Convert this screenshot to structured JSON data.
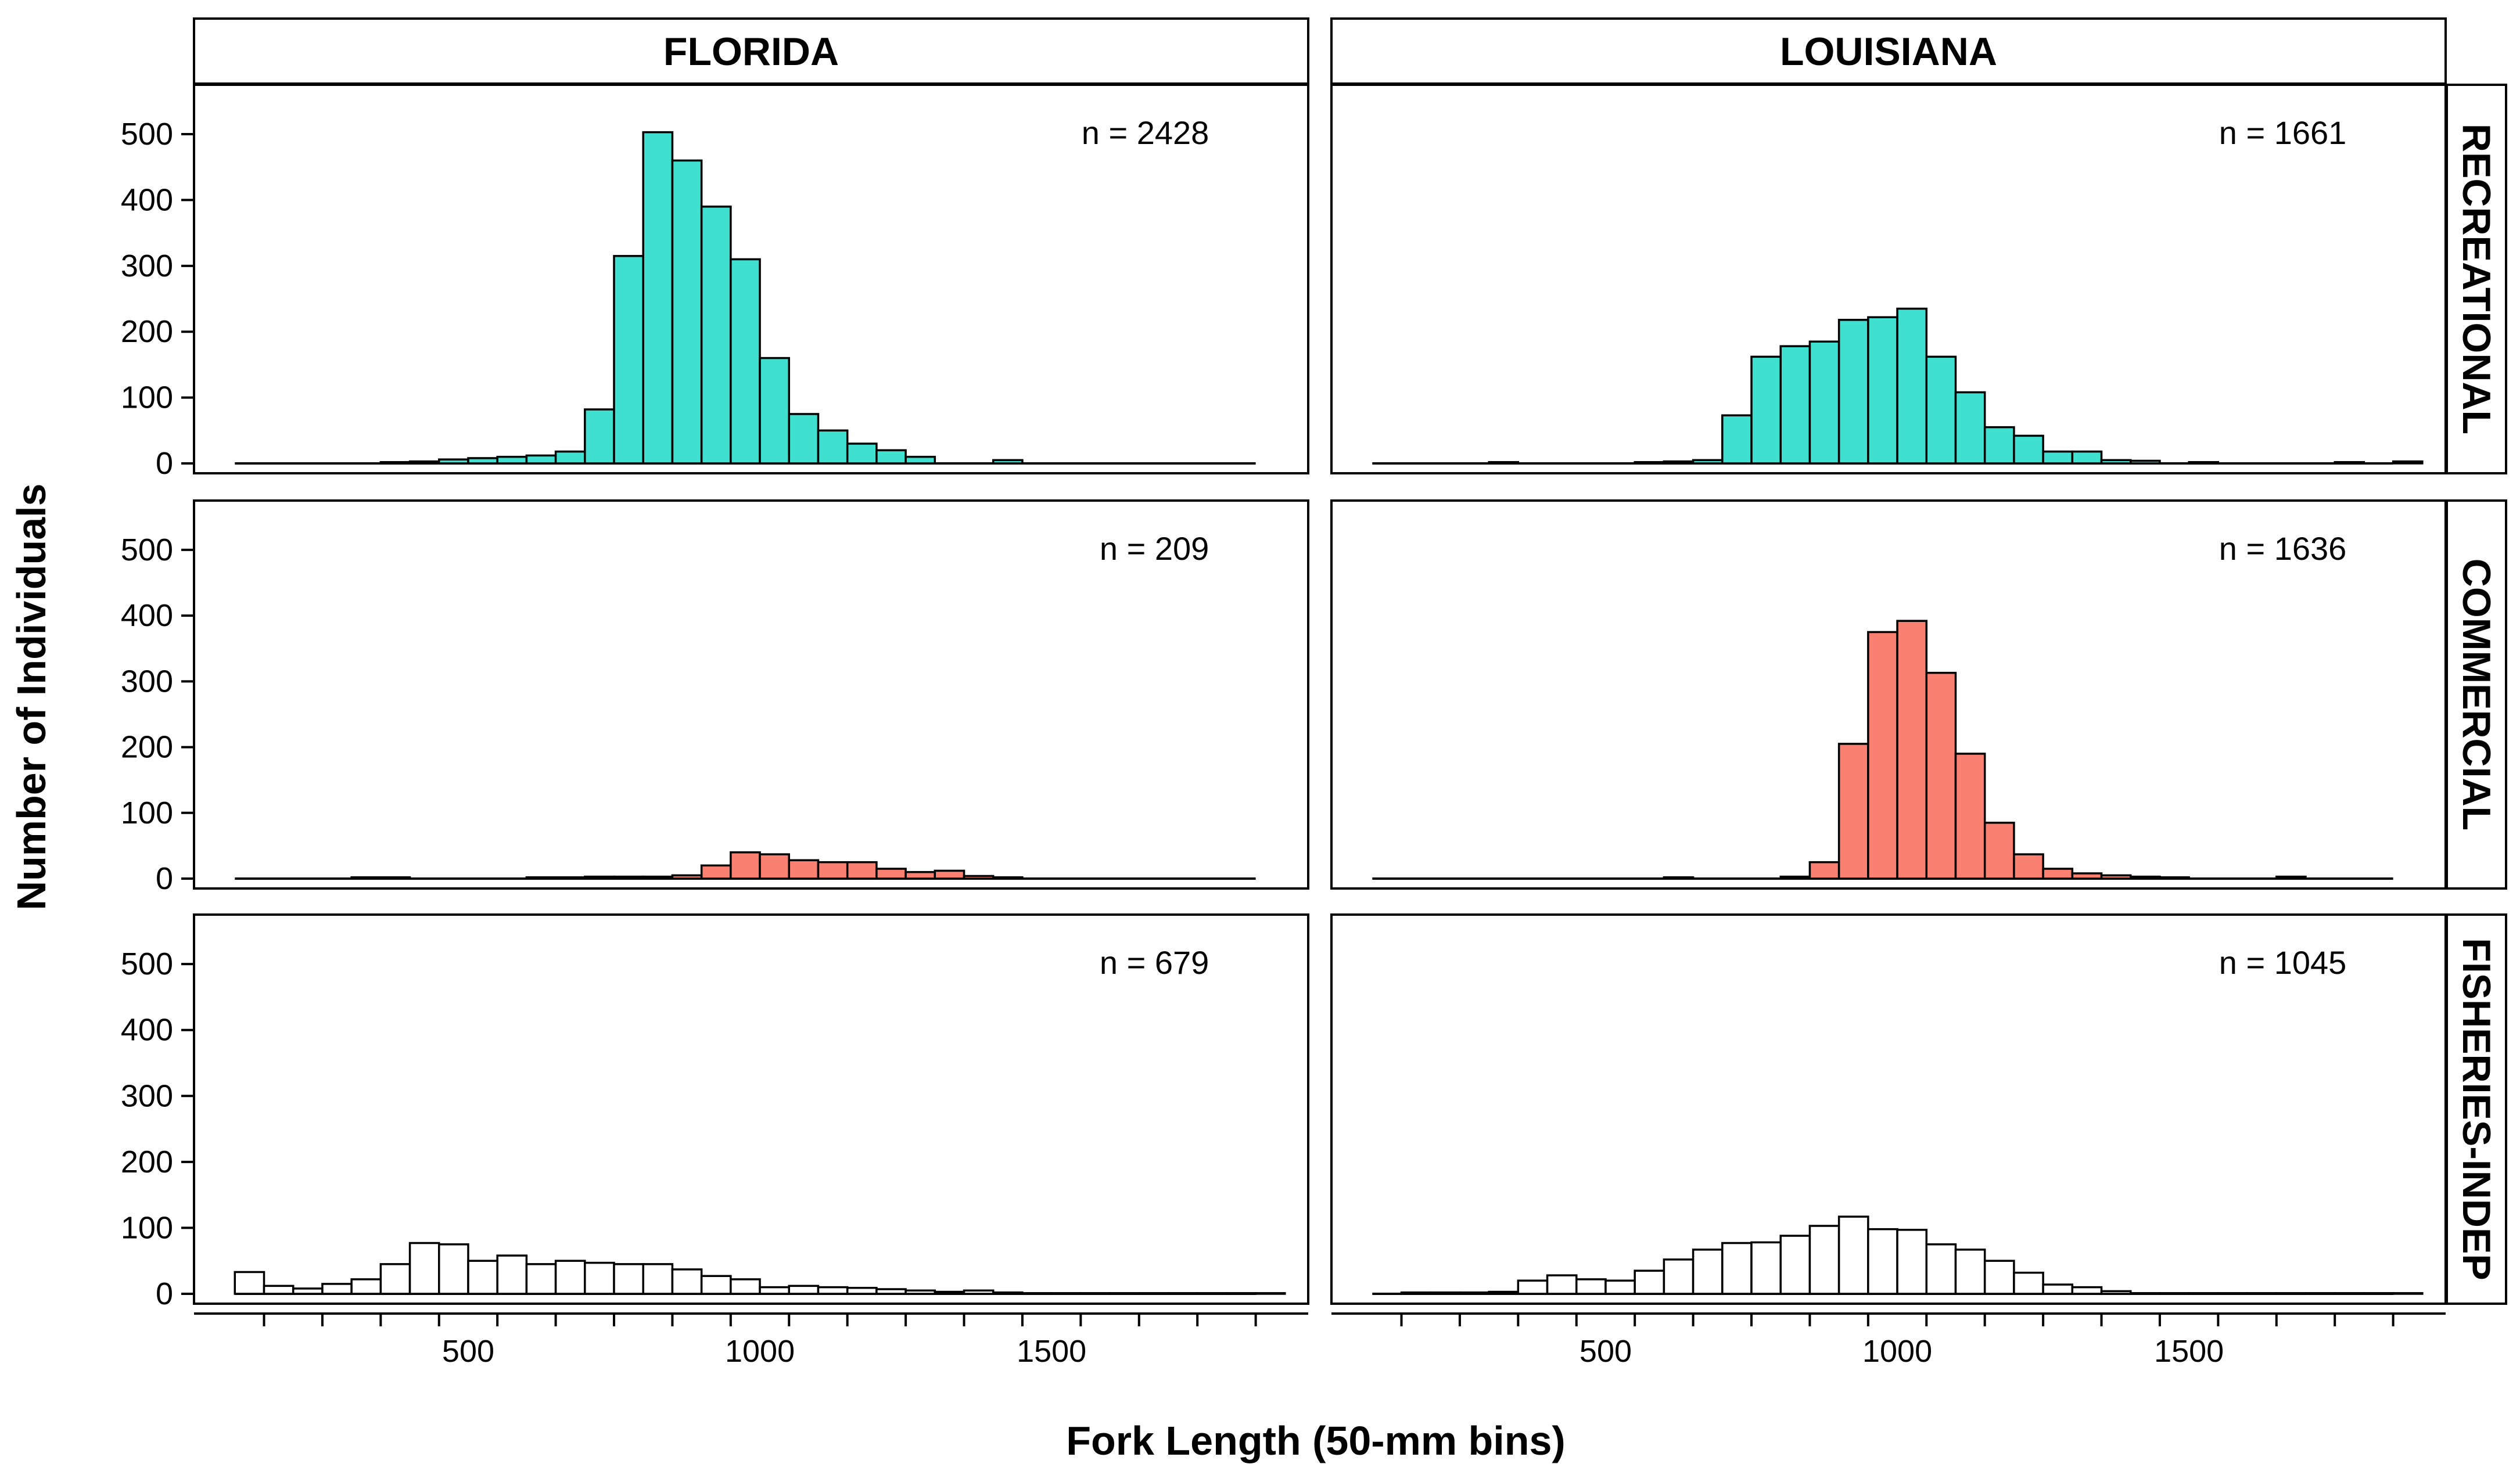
{
  "chart_data": {
    "type": "bar",
    "subtype": "faceted-histogram",
    "xlabel": "Fork Length (50-mm bins)",
    "ylabel": "Number of Individuals",
    "xlim": [
      30,
      1940
    ],
    "ylim": [
      -15,
      575
    ],
    "bin_width": 50,
    "x_ticks": [
      500,
      1000,
      1500
    ],
    "x_tick_labels": [
      "500",
      "1000",
      "1500"
    ],
    "x_minor_ticks": [
      150,
      250,
      350,
      450,
      550,
      650,
      750,
      850,
      950,
      1050,
      1150,
      1250,
      1350,
      1450,
      1550,
      1650,
      1750,
      1850
    ],
    "y_ticks": [
      0,
      100,
      200,
      300,
      400,
      500
    ],
    "y_tick_labels": [
      "0",
      "100",
      "200",
      "300",
      "400",
      "500"
    ],
    "columns": [
      "FLORIDA",
      "LOUISIANA"
    ],
    "rows": [
      "RECREATIONAL",
      "COMMERCIAL",
      "FISHERIES-INDEP"
    ],
    "colors": {
      "RECREATIONAL": "#40E0D0",
      "COMMERCIAL": "#FA8072",
      "FISHERIES-INDEP": "#FFFFFF",
      "outline": "#000000"
    },
    "panels": [
      {
        "state": "FLORIDA",
        "sector": "RECREATIONAL",
        "n_label": "n = 2428",
        "bin_starts": [
          350,
          400,
          450,
          500,
          550,
          600,
          650,
          700,
          750,
          800,
          850,
          900,
          950,
          1000,
          1050,
          1100,
          1150,
          1200,
          1250,
          1400
        ],
        "values": [
          2,
          3,
          6,
          8,
          10,
          12,
          18,
          82,
          315,
          503,
          460,
          390,
          310,
          160,
          75,
          50,
          30,
          20,
          10,
          5
        ]
      },
      {
        "state": "LOUISIANA",
        "sector": "RECREATIONAL",
        "n_label": "n = 1661",
        "bin_starts": [
          300,
          550,
          600,
          650,
          700,
          750,
          800,
          850,
          900,
          950,
          1000,
          1050,
          1100,
          1150,
          1200,
          1250,
          1300,
          1350,
          1400,
          1500,
          1750,
          1850
        ],
        "values": [
          2,
          2,
          3,
          5,
          73,
          162,
          178,
          185,
          218,
          222,
          235,
          162,
          108,
          55,
          42,
          18,
          18,
          5,
          4,
          2,
          2,
          3
        ]
      },
      {
        "state": "FLORIDA",
        "sector": "COMMERCIAL",
        "n_label": "n = 209",
        "bin_starts": [
          300,
          350,
          600,
          650,
          700,
          750,
          800,
          850,
          900,
          950,
          1000,
          1050,
          1100,
          1150,
          1200,
          1250,
          1300,
          1350,
          1400
        ],
        "values": [
          2,
          2,
          2,
          2,
          3,
          3,
          3,
          5,
          20,
          40,
          37,
          28,
          25,
          25,
          15,
          10,
          12,
          4,
          2
        ]
      },
      {
        "state": "LOUISIANA",
        "sector": "COMMERCIAL",
        "n_label": "n = 1636",
        "bin_starts": [
          600,
          800,
          850,
          900,
          950,
          1000,
          1050,
          1100,
          1150,
          1200,
          1250,
          1300,
          1350,
          1400,
          1450,
          1650
        ],
        "values": [
          2,
          3,
          25,
          205,
          375,
          392,
          313,
          190,
          85,
          37,
          15,
          8,
          5,
          3,
          2,
          3
        ]
      },
      {
        "state": "FLORIDA",
        "sector": "FISHERIES-INDEP",
        "n_label": "n = 679",
        "bin_starts": [
          100,
          150,
          200,
          250,
          300,
          350,
          400,
          450,
          500,
          550,
          600,
          650,
          700,
          750,
          800,
          850,
          900,
          950,
          1000,
          1050,
          1100,
          1150,
          1200,
          1250,
          1300,
          1350,
          1400,
          1450,
          1500,
          1550,
          1600,
          1650,
          1700,
          1750,
          1800,
          1850
        ],
        "values": [
          33,
          12,
          8,
          15,
          22,
          45,
          77,
          75,
          50,
          58,
          45,
          50,
          47,
          45,
          45,
          37,
          27,
          22,
          10,
          12,
          10,
          9,
          7,
          5,
          3,
          5,
          2,
          1,
          1,
          1,
          1,
          1,
          1,
          1,
          1,
          1
        ]
      },
      {
        "state": "LOUISIANA",
        "sector": "FISHERIES-INDEP",
        "n_label": "n = 1045",
        "bin_starts": [
          150,
          200,
          250,
          300,
          350,
          400,
          450,
          500,
          550,
          600,
          650,
          700,
          750,
          800,
          850,
          900,
          950,
          1000,
          1050,
          1100,
          1150,
          1200,
          1250,
          1300,
          1350,
          1400,
          1450,
          1500,
          1550,
          1600,
          1650,
          1700,
          1750,
          1800,
          1850
        ],
        "values": [
          2,
          2,
          2,
          3,
          20,
          28,
          22,
          20,
          35,
          52,
          67,
          77,
          78,
          88,
          103,
          117,
          98,
          97,
          75,
          67,
          50,
          32,
          14,
          10,
          4,
          1,
          1,
          1,
          1,
          1,
          1,
          1,
          1,
          1,
          1
        ]
      }
    ]
  }
}
